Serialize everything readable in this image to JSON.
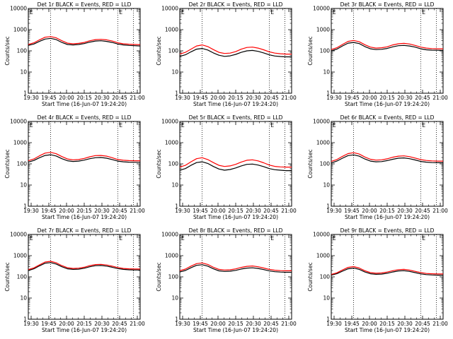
{
  "figure": {
    "xlabel": "Start Time (16-Jun-07 19:24:20)",
    "ylabel": "Counts/sec",
    "xticks": [
      "19:30",
      "19:45",
      "20:00",
      "20:15",
      "20:30",
      "20:45",
      "21:00"
    ],
    "yticks": [
      "1",
      "10",
      "100",
      "1000",
      "10000"
    ],
    "corner_label": "E",
    "black_color": "#000000",
    "red_color": "#ff0000"
  },
  "chart_data": [
    {
      "type": "line",
      "title": "Det 1r BLACK = Events, RED = LLD",
      "yscale": "log",
      "ylim": [
        1,
        10000
      ],
      "xlim": [
        0,
        100
      ],
      "dotted_x": [
        20,
        80,
        94
      ],
      "series": [
        {
          "color": "#000000",
          "x": [
            0,
            5,
            10,
            15,
            20,
            25,
            30,
            35,
            40,
            45,
            50,
            55,
            60,
            65,
            70,
            75,
            80,
            85,
            90,
            95,
            100
          ],
          "values": [
            180,
            210,
            280,
            360,
            390,
            340,
            250,
            200,
            190,
            200,
            220,
            260,
            290,
            300,
            280,
            250,
            210,
            190,
            180,
            175,
            170
          ]
        },
        {
          "color": "#ff0000",
          "x": [
            0,
            5,
            10,
            15,
            20,
            25,
            30,
            35,
            40,
            45,
            50,
            55,
            60,
            65,
            70,
            75,
            80,
            85,
            90,
            95,
            100
          ],
          "values": [
            200,
            240,
            330,
            440,
            470,
            410,
            300,
            230,
            215,
            225,
            250,
            300,
            340,
            350,
            330,
            290,
            240,
            215,
            205,
            200,
            195
          ]
        }
      ]
    },
    {
      "type": "line",
      "title": "Det 2r BLACK = Events, RED = LLD",
      "yscale": "log",
      "ylim": [
        1,
        10000
      ],
      "xlim": [
        0,
        100
      ],
      "dotted_x": [
        20,
        80,
        94
      ],
      "series": [
        {
          "color": "#000000",
          "x": [
            0,
            5,
            10,
            15,
            20,
            25,
            30,
            35,
            40,
            45,
            50,
            55,
            60,
            65,
            70,
            75,
            80,
            85,
            90,
            95,
            100
          ],
          "values": [
            55,
            65,
            90,
            120,
            130,
            110,
            80,
            62,
            55,
            58,
            68,
            85,
            100,
            105,
            95,
            80,
            65,
            57,
            54,
            52,
            52
          ]
        },
        {
          "color": "#ff0000",
          "x": [
            0,
            5,
            10,
            15,
            20,
            25,
            30,
            35,
            40,
            45,
            50,
            55,
            60,
            65,
            70,
            75,
            80,
            85,
            90,
            95,
            100
          ],
          "values": [
            70,
            85,
            120,
            170,
            190,
            160,
            115,
            85,
            75,
            78,
            92,
            120,
            145,
            150,
            135,
            112,
            90,
            78,
            73,
            70,
            70
          ]
        }
      ]
    },
    {
      "type": "line",
      "title": "Det 3r BLACK = Events, RED = LLD",
      "yscale": "log",
      "ylim": [
        1,
        10000
      ],
      "xlim": [
        0,
        100
      ],
      "dotted_x": [
        20,
        80,
        94
      ],
      "series": [
        {
          "color": "#000000",
          "x": [
            0,
            5,
            10,
            15,
            20,
            25,
            30,
            35,
            40,
            45,
            50,
            55,
            60,
            65,
            70,
            75,
            80,
            85,
            90,
            95,
            100
          ],
          "values": [
            100,
            120,
            170,
            230,
            250,
            220,
            160,
            125,
            115,
            118,
            130,
            155,
            175,
            180,
            170,
            150,
            125,
            112,
            108,
            106,
            105
          ]
        },
        {
          "color": "#ff0000",
          "x": [
            0,
            5,
            10,
            15,
            20,
            25,
            30,
            35,
            40,
            45,
            50,
            55,
            60,
            65,
            70,
            75,
            80,
            85,
            90,
            95,
            100
          ],
          "values": [
            115,
            140,
            200,
            280,
            310,
            270,
            195,
            150,
            135,
            140,
            155,
            190,
            215,
            225,
            210,
            180,
            150,
            135,
            128,
            125,
            125
          ]
        }
      ]
    },
    {
      "type": "line",
      "title": "Det 4r BLACK = Events, RED = LLD",
      "yscale": "log",
      "ylim": [
        1,
        10000
      ],
      "xlim": [
        0,
        100
      ],
      "dotted_x": [
        20,
        80,
        94
      ],
      "series": [
        {
          "color": "#000000",
          "x": [
            0,
            5,
            10,
            15,
            20,
            25,
            30,
            35,
            40,
            45,
            50,
            55,
            60,
            65,
            70,
            75,
            80,
            85,
            90,
            95,
            100
          ],
          "values": [
            120,
            145,
            195,
            250,
            270,
            235,
            175,
            140,
            130,
            135,
            150,
            175,
            195,
            200,
            185,
            160,
            135,
            125,
            120,
            118,
            118
          ]
        },
        {
          "color": "#ff0000",
          "x": [
            0,
            5,
            10,
            15,
            20,
            25,
            30,
            35,
            40,
            45,
            50,
            55,
            60,
            65,
            70,
            75,
            80,
            85,
            90,
            95,
            100
          ],
          "values": [
            140,
            170,
            240,
            320,
            350,
            300,
            220,
            170,
            155,
            160,
            180,
            215,
            245,
            250,
            230,
            195,
            160,
            148,
            142,
            140,
            140
          ]
        }
      ]
    },
    {
      "type": "line",
      "title": "Det 5r BLACK = Events, RED = LLD",
      "yscale": "log",
      "ylim": [
        1,
        10000
      ],
      "xlim": [
        0,
        100
      ],
      "dotted_x": [
        20,
        80,
        94
      ],
      "series": [
        {
          "color": "#000000",
          "x": [
            0,
            5,
            10,
            15,
            20,
            25,
            30,
            35,
            40,
            45,
            50,
            55,
            60,
            65,
            70,
            75,
            80,
            85,
            90,
            95,
            100
          ],
          "values": [
            50,
            60,
            85,
            115,
            125,
            105,
            75,
            57,
            50,
            54,
            64,
            80,
            95,
            98,
            88,
            74,
            60,
            53,
            50,
            48,
            48
          ]
        },
        {
          "color": "#ff0000",
          "x": [
            0,
            5,
            10,
            15,
            20,
            25,
            30,
            35,
            40,
            45,
            50,
            55,
            60,
            65,
            70,
            75,
            80,
            85,
            90,
            95,
            100
          ],
          "values": [
            70,
            85,
            125,
            175,
            195,
            160,
            115,
            85,
            75,
            80,
            95,
            122,
            148,
            155,
            138,
            112,
            88,
            76,
            72,
            70,
            70
          ]
        }
      ]
    },
    {
      "type": "line",
      "title": "Det 6r BLACK = Events, RED = LLD",
      "yscale": "log",
      "ylim": [
        1,
        10000
      ],
      "xlim": [
        0,
        100
      ],
      "dotted_x": [
        20,
        80,
        94
      ],
      "series": [
        {
          "color": "#000000",
          "x": [
            0,
            5,
            10,
            15,
            20,
            25,
            30,
            35,
            40,
            45,
            50,
            55,
            60,
            65,
            70,
            75,
            80,
            85,
            90,
            95,
            100
          ],
          "values": [
            110,
            135,
            185,
            245,
            265,
            230,
            170,
            135,
            125,
            128,
            142,
            165,
            185,
            190,
            175,
            152,
            130,
            120,
            115,
            113,
            113
          ]
        },
        {
          "color": "#ff0000",
          "x": [
            0,
            5,
            10,
            15,
            20,
            25,
            30,
            35,
            40,
            45,
            50,
            55,
            60,
            65,
            70,
            75,
            80,
            85,
            90,
            95,
            100
          ],
          "values": [
            130,
            160,
            225,
            305,
            335,
            290,
            210,
            165,
            150,
            155,
            172,
            205,
            230,
            238,
            218,
            188,
            158,
            145,
            138,
            135,
            135
          ]
        }
      ]
    },
    {
      "type": "line",
      "title": "Det 7r BLACK = Events, RED = LLD",
      "yscale": "log",
      "ylim": [
        1,
        10000
      ],
      "xlim": [
        0,
        100
      ],
      "dotted_x": [
        20,
        80,
        94
      ],
      "series": [
        {
          "color": "#000000",
          "x": [
            0,
            5,
            10,
            15,
            20,
            25,
            30,
            35,
            40,
            45,
            50,
            55,
            60,
            65,
            70,
            75,
            80,
            85,
            90,
            95,
            100
          ],
          "values": [
            200,
            240,
            330,
            440,
            470,
            400,
            300,
            240,
            225,
            230,
            255,
            300,
            335,
            345,
            320,
            285,
            245,
            225,
            215,
            210,
            210
          ]
        },
        {
          "color": "#ff0000",
          "x": [
            0,
            5,
            10,
            15,
            20,
            25,
            30,
            35,
            40,
            45,
            50,
            55,
            60,
            65,
            70,
            75,
            80,
            85,
            90,
            95,
            100
          ],
          "values": [
            220,
            265,
            370,
            500,
            540,
            460,
            340,
            270,
            250,
            258,
            285,
            340,
            380,
            390,
            362,
            320,
            275,
            250,
            240,
            235,
            235
          ]
        }
      ]
    },
    {
      "type": "line",
      "title": "Det 8r BLACK = Events, RED = LLD",
      "yscale": "log",
      "ylim": [
        1,
        10000
      ],
      "xlim": [
        0,
        100
      ],
      "dotted_x": [
        20,
        80,
        94
      ],
      "series": [
        {
          "color": "#000000",
          "x": [
            0,
            5,
            10,
            15,
            20,
            25,
            30,
            35,
            40,
            45,
            50,
            55,
            60,
            65,
            70,
            75,
            80,
            85,
            90,
            95,
            100
          ],
          "values": [
            170,
            200,
            270,
            350,
            375,
            320,
            240,
            192,
            180,
            185,
            202,
            235,
            260,
            268,
            250,
            220,
            190,
            175,
            168,
            165,
            165
          ]
        },
        {
          "color": "#ff0000",
          "x": [
            0,
            5,
            10,
            15,
            20,
            25,
            30,
            35,
            40,
            45,
            50,
            55,
            60,
            65,
            70,
            75,
            80,
            85,
            90,
            95,
            100
          ],
          "values": [
            195,
            232,
            320,
            420,
            455,
            385,
            285,
            225,
            210,
            215,
            238,
            280,
            315,
            325,
            300,
            262,
            225,
            205,
            197,
            194,
            194
          ]
        }
      ]
    },
    {
      "type": "line",
      "title": "Det 9r BLACK = Events, RED = LLD",
      "yscale": "log",
      "ylim": [
        1,
        10000
      ],
      "xlim": [
        0,
        100
      ],
      "dotted_x": [
        20,
        80,
        94
      ],
      "series": [
        {
          "color": "#000000",
          "x": [
            0,
            5,
            10,
            15,
            20,
            25,
            30,
            35,
            40,
            45,
            50,
            55,
            60,
            65,
            70,
            75,
            80,
            85,
            90,
            95,
            100
          ],
          "values": [
            120,
            140,
            185,
            240,
            260,
            225,
            170,
            140,
            132,
            135,
            148,
            170,
            190,
            195,
            180,
            158,
            138,
            128,
            123,
            120,
            120
          ]
        },
        {
          "color": "#ff0000",
          "x": [
            0,
            5,
            10,
            15,
            20,
            25,
            30,
            35,
            40,
            45,
            50,
            55,
            60,
            65,
            70,
            75,
            80,
            85,
            90,
            95,
            100
          ],
          "values": [
            130,
            155,
            210,
            280,
            305,
            262,
            195,
            158,
            148,
            152,
            168,
            195,
            218,
            225,
            208,
            182,
            158,
            145,
            140,
            137,
            137
          ]
        }
      ]
    }
  ]
}
